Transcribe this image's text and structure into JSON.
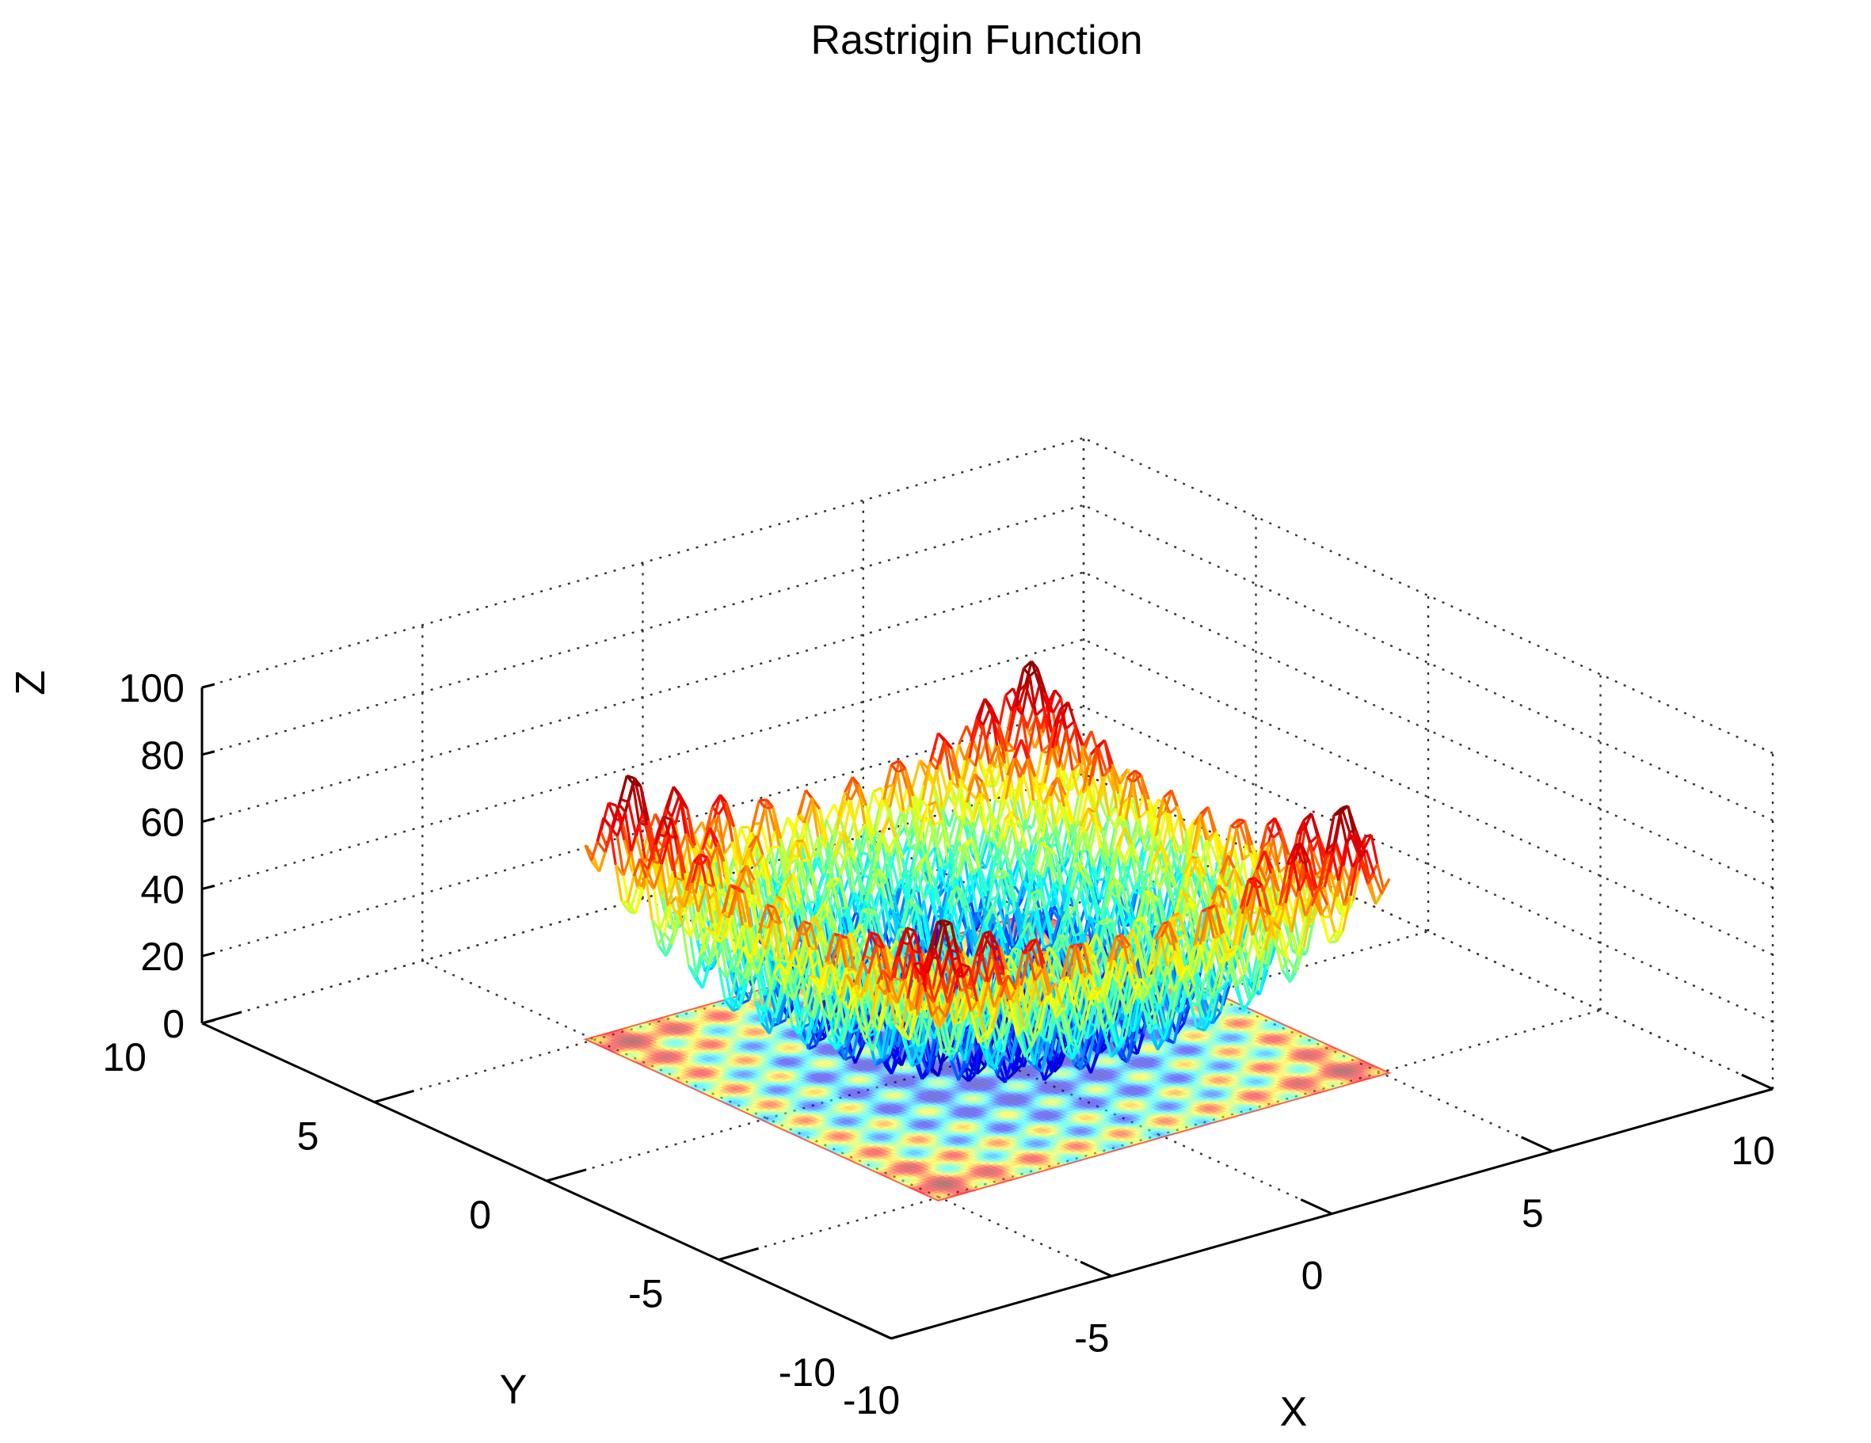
{
  "chart_data": {
    "type": "surface3d",
    "title": "Rastrigin Function",
    "function": "z = 20 + x^2 + y^2 - 10*(cos(2*pi*x) + cos(2*pi*y))",
    "xlabel": "X",
    "ylabel": "Y",
    "zlabel": "Z",
    "xlim": [
      -10,
      10
    ],
    "ylim": [
      -10,
      10
    ],
    "zlim": [
      0,
      100
    ],
    "x_domain": [
      -5.12,
      5.12
    ],
    "y_domain": [
      -5.12,
      5.12
    ],
    "x_ticks": [
      "-10",
      "-5",
      "0",
      "5",
      "10"
    ],
    "y_ticks": [
      "-10",
      "-5",
      "0",
      "5",
      "10"
    ],
    "z_ticks": [
      "0",
      "20",
      "40",
      "60",
      "80",
      "100"
    ],
    "grid": true,
    "colormap": "jet",
    "colormap_colors": [
      "#00008f",
      "#0000ff",
      "#00ffff",
      "#ffff00",
      "#ff0000",
      "#800000"
    ],
    "mesh_style": "wireframe",
    "contour_projection": "floor",
    "view": "3d"
  }
}
